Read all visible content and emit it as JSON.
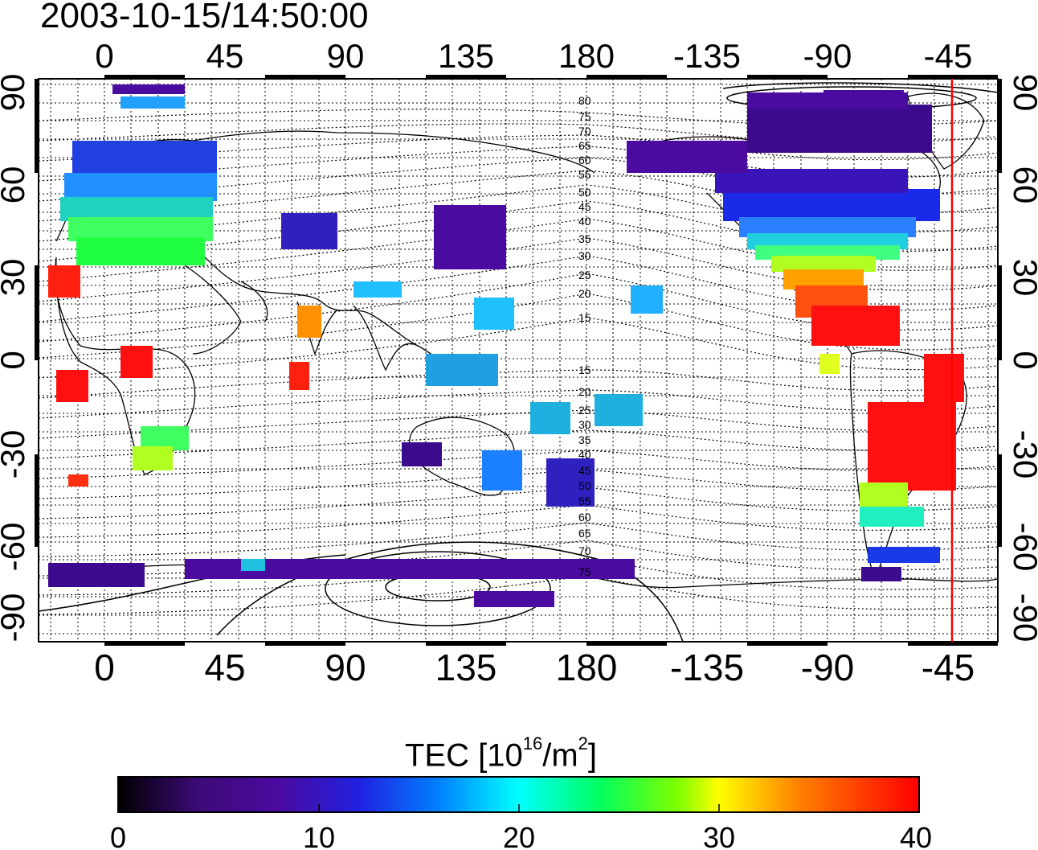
{
  "timestamp": "2003-10-15/14:50:00",
  "axes": {
    "lon_ticks": [
      "0",
      "45",
      "90",
      "135",
      "180",
      "-135",
      "-90",
      "-45"
    ],
    "lat_ticks": [
      "90",
      "60",
      "30",
      "0",
      "-30",
      "-60",
      "-90"
    ]
  },
  "magnetic_latitude_labels": {
    "north": [
      "80",
      "75",
      "70",
      "65",
      "60",
      "55",
      "50",
      "45",
      "40",
      "35",
      "30",
      "25",
      "20",
      "15"
    ],
    "south": [
      "15",
      "20",
      "25",
      "30",
      "35",
      "40",
      "45",
      "50",
      "55",
      "60",
      "65",
      "70",
      "75"
    ]
  },
  "colorbar": {
    "title_prefix": "TEC  [10",
    "title_exp": "16",
    "title_mid": "/m",
    "title_exp2": "2",
    "title_suffix": "]",
    "ticks": [
      "0",
      "10",
      "20",
      "30",
      "40"
    ],
    "stops": [
      "#000000",
      "#4b0aa0",
      "#0000ff",
      "#00ffff",
      "#00ff00",
      "#ffff00",
      "#ff8000",
      "#ff0000"
    ]
  },
  "colors": {
    "terminator": "#ff0000",
    "frame": "#000000"
  }
}
